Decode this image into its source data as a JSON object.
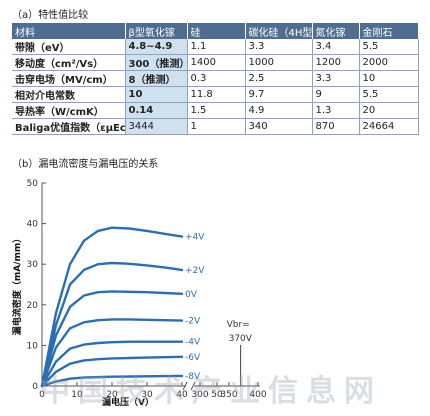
{
  "section_a_title": "（a）特性值比较",
  "section_b_title": "（b）漏电流密度与漏电压的关系",
  "table": {
    "headers": [
      "材料",
      "β型氧化镓",
      "硅",
      "碳化硅（4H型）",
      "氮化镓",
      "金刚石"
    ],
    "rows": [
      [
        "带隙（eV）",
        "4.8~4.9",
        "1.1",
        "3.3",
        "3.4",
        "5.5"
      ],
      [
        "移动度（cm²/Vs）",
        "300（推测）",
        "1400",
        "1000",
        "1200",
        "2000"
      ],
      [
        "击穿电场（MV/cm）",
        "8（推测）",
        "0.3",
        "2.5",
        "3.3",
        "10"
      ],
      [
        "相对介电常数",
        "10",
        "11.8",
        "9.7",
        "9",
        "5.5"
      ],
      [
        "导热率（W/cmK）",
        "0.14",
        "1.5",
        "4.9",
        "1.3",
        "20"
      ],
      [
        "Baliga优值指数（εμEc³）",
        "3444",
        "1",
        "340",
        "870",
        "24664"
      ]
    ]
  },
  "watermark": "中国技术产业信息网",
  "chart_data": {
    "type": "line",
    "xlabel": "漏电压（V）",
    "ylabel": "漏电流密度（mA/mm）",
    "xlim": [
      0,
      400
    ],
    "ylim": [
      0,
      50
    ],
    "x_ticks": [
      "0",
      "10",
      "20",
      "30",
      "40",
      "50",
      "300",
      "350",
      "400"
    ],
    "y_ticks": [
      "0",
      "10",
      "20",
      "30",
      "40",
      "50"
    ],
    "axis_break": "between 40 V and 300 V",
    "annotation": {
      "label": "Vbr=",
      "value": "370V",
      "x": 370
    },
    "series": [
      {
        "name": "+4V",
        "x": [
          0,
          4,
          8,
          12,
          16,
          20,
          25,
          30,
          35,
          40
        ],
        "y": [
          0,
          18,
          30,
          35.8,
          38.2,
          39,
          38.8,
          38.2,
          37.5,
          36.8
        ]
      },
      {
        "name": "+2V",
        "x": [
          0,
          4,
          8,
          12,
          16,
          20,
          25,
          30,
          35,
          40
        ],
        "y": [
          0,
          15,
          25,
          28.6,
          30,
          30.3,
          30.1,
          29.7,
          29.2,
          28.6
        ]
      },
      {
        "name": "0V",
        "x": [
          0,
          4,
          8,
          12,
          16,
          20,
          25,
          30,
          35,
          40
        ],
        "y": [
          0,
          12.5,
          19.5,
          22.3,
          23.1,
          23.3,
          23.2,
          23.1,
          22.9,
          22.7
        ]
      },
      {
        "name": "-2V",
        "x": [
          0,
          4,
          8,
          12,
          16,
          20,
          25,
          30,
          35,
          40
        ],
        "y": [
          0,
          9.5,
          14.2,
          15.7,
          16.2,
          16.4,
          16.4,
          16.3,
          16.2,
          16.1
        ]
      },
      {
        "name": "-4V",
        "x": [
          0,
          4,
          8,
          12,
          16,
          20,
          25,
          30,
          35,
          40
        ],
        "y": [
          0,
          6,
          9.2,
          10.2,
          10.6,
          10.8,
          10.9,
          10.9,
          10.9,
          10.9
        ]
      },
      {
        "name": "-6V",
        "x": [
          0,
          4,
          8,
          12,
          16,
          20,
          25,
          30,
          35,
          40
        ],
        "y": [
          0,
          3.5,
          5.5,
          6.3,
          6.6,
          6.8,
          6.9,
          7.0,
          7.1,
          7.2
        ]
      },
      {
        "name": "-8V",
        "x": [
          0,
          4,
          8,
          12,
          16,
          20,
          25,
          30,
          35,
          40
        ],
        "y": [
          0,
          1.1,
          1.8,
          2.1,
          2.2,
          2.3,
          2.35,
          2.4,
          2.45,
          2.5
        ]
      }
    ]
  },
  "colors": {
    "curve": "#2a6fb6",
    "header_bg": "#4f6c91",
    "highlight_bg": "#cfe0ee",
    "axis": "#555555"
  }
}
